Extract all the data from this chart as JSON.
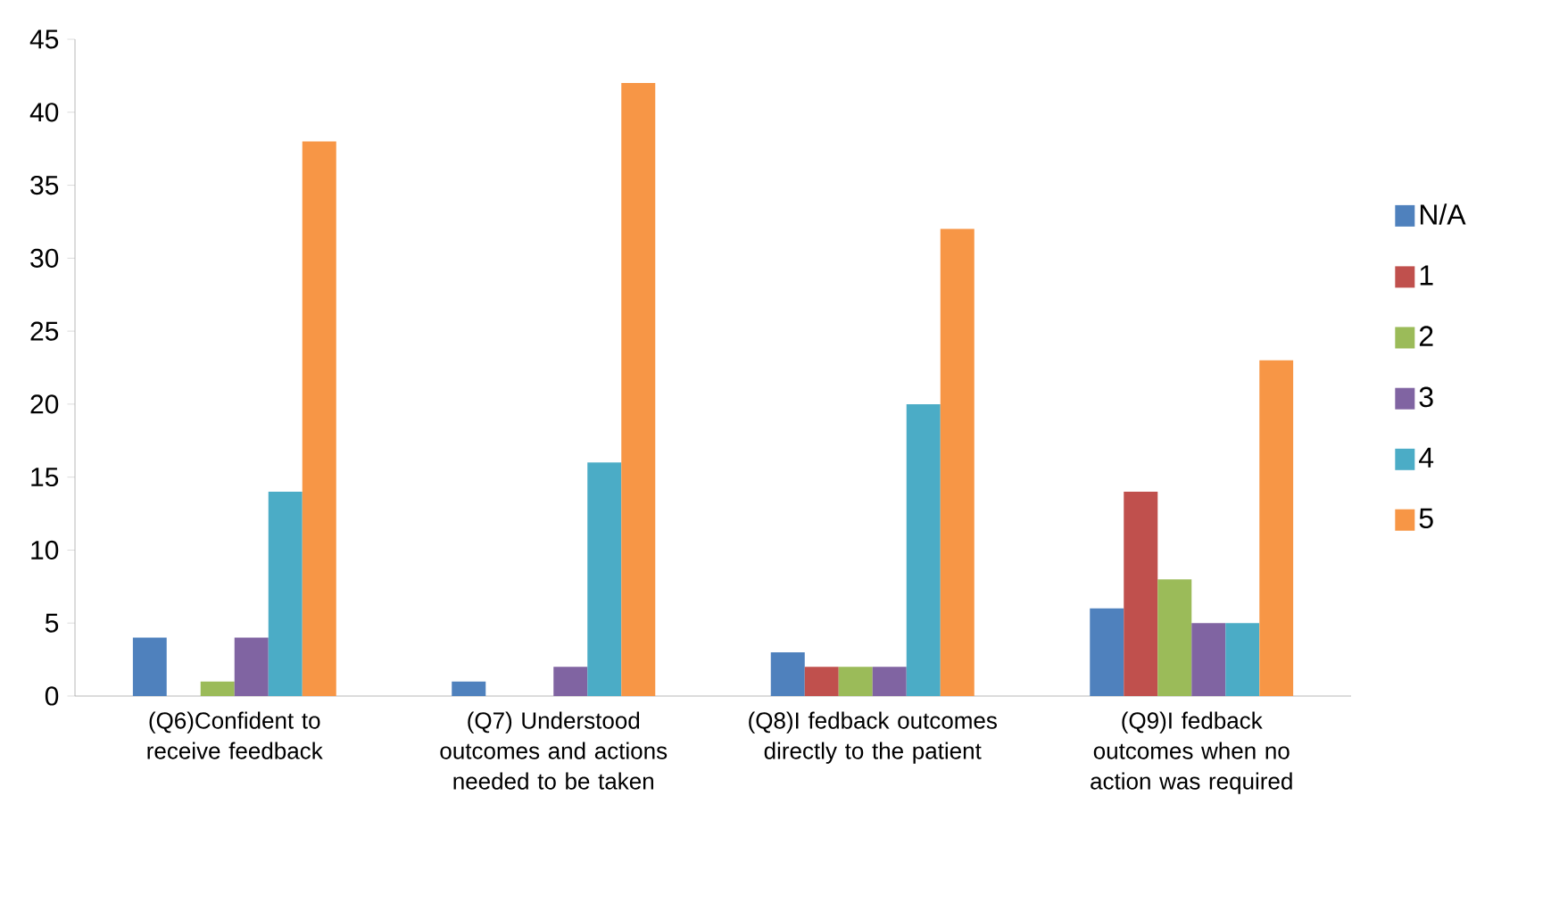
{
  "chart_data": {
    "type": "bar",
    "categories": [
      "(Q6)Confident to receive feedback",
      "(Q7) Understood outcomes and actions needed to be taken",
      "(Q8)I fedback outcomes directly to the patient",
      "(Q9)I fedback outcomes when no action was required"
    ],
    "series": [
      {
        "name": "N/A",
        "color": "#4f81bd",
        "values": [
          4,
          1,
          3,
          6
        ]
      },
      {
        "name": "1",
        "color": "#c0504d",
        "values": [
          0,
          0,
          2,
          14
        ]
      },
      {
        "name": "2",
        "color": "#9bbb59",
        "values": [
          1,
          0,
          2,
          8
        ]
      },
      {
        "name": "3",
        "color": "#8064a2",
        "values": [
          4,
          2,
          2,
          5
        ]
      },
      {
        "name": "4",
        "color": "#4bacc6",
        "values": [
          14,
          16,
          20,
          5
        ]
      },
      {
        "name": "5",
        "color": "#f79646",
        "values": [
          38,
          42,
          32,
          23
        ]
      }
    ],
    "ylim": [
      0,
      45
    ],
    "yticks": [
      0,
      5,
      10,
      15,
      20,
      25,
      30,
      35,
      40,
      45
    ],
    "grid": false,
    "legend": "right"
  }
}
